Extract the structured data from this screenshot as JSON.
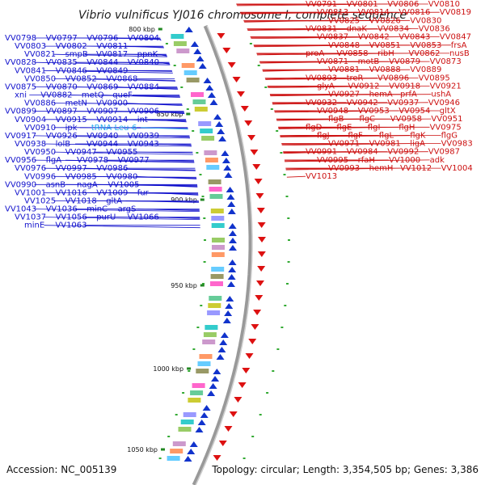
{
  "title": "Vibrio vulnificus YJ016 chromosome I, complete sequence",
  "footer": {
    "accession": "Accession: NC_005139",
    "topology": "Topology: circular; Length: 3,354,505 bp; Genes: 3,386"
  },
  "colors": {
    "left_labels": "#1111cc",
    "right_labels": "#cc1111",
    "trna_label": "#22aaee",
    "backbone": "#999999",
    "forward_feature": "#1133cc",
    "reverse_feature": "#dd1111"
  },
  "ticks": [
    "800 kbp",
    "850 kbp",
    "900 kbp",
    "950 kbp",
    "1000 kbp",
    "1050 kbp"
  ],
  "left_genes": [
    "VV0798",
    "VV0797",
    "VV0796",
    "VV0804",
    "VV0803",
    "VV0802",
    "VV0811",
    "VV0821",
    "smpB",
    "VV0817",
    "ppnK",
    "VV0828",
    "VV0835",
    "VV0844",
    "VV0840",
    "VV0841",
    "VV0846",
    "VV0849",
    "VV0850",
    "VV0852",
    "VV0868",
    "VV0875",
    "VV0870",
    "VV0869",
    "VV0884",
    "xni",
    "VV0882",
    "metQ",
    "queF",
    "VV0886",
    "metN",
    "VV0900",
    "VV0899",
    "VV0897",
    "VV0907",
    "VV0906",
    "VV0904",
    "VV0915",
    "VV0914",
    "int",
    "VV0910",
    "ipk",
    "tRNA-Leu-6",
    "VV0917",
    "VV0926",
    "VV0940",
    "VV0939",
    "VV0938",
    "lolB",
    "VV0944",
    "VV0943",
    "VV0950",
    "VV0947",
    "VV0955",
    "VV0956",
    "flgA",
    "VV0978",
    "VV0977",
    "VV0976",
    "VV0997",
    "VV0986",
    "VV0996",
    "VV0985",
    "VV0980",
    "VV0990",
    "asnB",
    "nagA",
    "VV1005",
    "VV1001",
    "VV1016",
    "VV1009",
    "fur",
    "VV1025",
    "VV1018",
    "gltA",
    "VV1043",
    "VV1036",
    "minC",
    "argS",
    "VV1037",
    "VV1056",
    "purU",
    "VV1066",
    "minE",
    "VV1063"
  ],
  "right_genes": [
    "VV0791",
    "VV0801",
    "VV0806",
    "VV0810",
    "VV0813",
    "VV0814",
    "VV0816",
    "VV0819",
    "VV0825",
    "VV0826",
    "VV0830",
    "VV0831",
    "dnaK",
    "VV0834",
    "VV0836",
    "VV0837",
    "VV0842",
    "VV0843",
    "VV0847",
    "VV0848",
    "VV0851",
    "VV0853",
    "frsA",
    "proA",
    "VV0858",
    "ribH",
    "VV0862",
    "nusB",
    "VV0871",
    "motB",
    "VV0879",
    "VV0873",
    "VV0881",
    "VV0888",
    "VV0889",
    "VV0893",
    "treR",
    "VV0896",
    "VV0895",
    "glyA",
    "VV0912",
    "VV0918",
    "VV0921",
    "VV0927",
    "hemA",
    "prfA",
    "ushA",
    "VV0932",
    "VV0942",
    "VV0937",
    "VV0946",
    "VV0948",
    "VV0953",
    "VV0954",
    "gltX",
    "flgB",
    "flgC",
    "VV0958",
    "VV0951",
    "flgD",
    "flgE",
    "flgI",
    "flgH",
    "VV0975",
    "flgJ",
    "flgF",
    "flgL",
    "flgK",
    "flgG",
    "VV0971",
    "VV0981",
    "ligA",
    "VV0983",
    "VV0991",
    "VV0984",
    "VV0992",
    "VV0987",
    "VV0995",
    "rfaH",
    "VV1000",
    "adk",
    "VV0993",
    "hemH",
    "VV1012",
    "VV1004",
    "VV1013"
  ]
}
